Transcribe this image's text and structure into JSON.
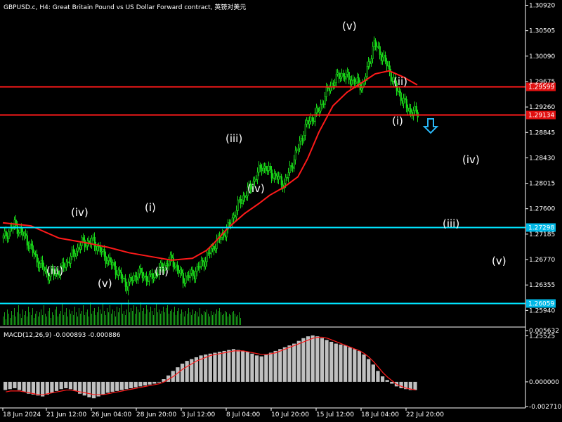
{
  "header": {
    "title": "GBPUSD.c, H4:  Great Britain Pound vs US Dollar Forward contract, 英镑对美元"
  },
  "chart_data": [
    {
      "type": "line",
      "subtype": "price-candlestick",
      "title": "GBPUSD.c, H4:  Great Britain Pound vs US Dollar Forward contract, 英镑对美元",
      "ylim": [
        1.2568,
        1.3096
      ],
      "grid": false,
      "y_ticks": [
        "1.30920",
        "1.30505",
        "1.30090",
        "1.29675",
        "1.29260",
        "1.28845",
        "1.28430",
        "1.28015",
        "1.27600",
        "1.27185",
        "1.26770",
        "1.26355",
        "1.25940",
        "1.25525"
      ],
      "x_ticks": [
        "18 Jun 2024",
        "21 Jun 12:00",
        "26 Jun 04:00",
        "28 Jun 20:00",
        "3 Jul 12:00",
        "8 Jul 04:00",
        "10 Jul 20:00",
        "15 Jul 12:00",
        "18 Jul 04:00",
        "22 Jul 20:00"
      ],
      "horizontal_levels": [
        {
          "label": "1.29599",
          "value": 1.29599,
          "color": "#ff1a1a",
          "label_bg": "#e01010"
        },
        {
          "label": "1.29134",
          "value": 1.29134,
          "color": "#ff1a1a",
          "label_bg": "#e01010"
        },
        {
          "label": "1.27298",
          "value": 1.27298,
          "color": "#00e5ff",
          "label_bg": "#00b8e6"
        },
        {
          "label": "1.26059",
          "value": 1.26059,
          "color": "#00e5ff",
          "label_bg": "#00b8e6"
        }
      ],
      "moving_average": {
        "color": "#ff1a1a",
        "x": [
          0,
          20,
          40,
          60,
          75,
          90,
          105,
          120,
          135,
          145,
          150,
          160,
          172,
          182,
          190,
          200,
          210,
          217
        ],
        "values": [
          1.2737,
          1.2732,
          1.2712,
          1.2704,
          1.2697,
          1.2688,
          1.2682,
          1.2676,
          1.2679,
          1.2692,
          1.2703,
          1.2728,
          1.2752,
          1.2768,
          1.2782,
          1.2795,
          1.2812,
          1.2842
        ]
      },
      "ma_upper": {
        "x": [
          217,
          225,
          235,
          245,
          255,
          265,
          275,
          285,
          295
        ],
        "values": [
          1.2842,
          1.2885,
          1.2928,
          1.295,
          1.2965,
          1.298,
          1.2985,
          1.2975,
          1.2962
        ]
      },
      "price_path": {
        "x": [
          0,
          8,
          16,
          24,
          32,
          40,
          48,
          56,
          64,
          72,
          80,
          88,
          96,
          104,
          112,
          120,
          128,
          136,
          144,
          152,
          160,
          168,
          176,
          184,
          192,
          200,
          208,
          216,
          224,
          232,
          240,
          248,
          256,
          264,
          272,
          280,
          288,
          296
        ],
        "values": [
          1.2712,
          1.2734,
          1.2712,
          1.2676,
          1.2652,
          1.2658,
          1.268,
          1.2704,
          1.2706,
          1.2683,
          1.2661,
          1.2635,
          1.2655,
          1.2645,
          1.2662,
          1.2677,
          1.2645,
          1.2655,
          1.2678,
          1.2706,
          1.2728,
          1.277,
          1.2795,
          1.283,
          1.2816,
          1.28,
          1.2848,
          1.2898,
          1.2918,
          1.2958,
          1.298,
          1.297,
          1.296,
          1.303,
          1.3,
          1.2955,
          1.2922,
          1.2914
        ]
      },
      "volume_bars": [
        6,
        9,
        4,
        11,
        8,
        5,
        10,
        7,
        12,
        6,
        9,
        14,
        8,
        5,
        11,
        7,
        10,
        6,
        13,
        9,
        7,
        12,
        5,
        8,
        10,
        6,
        9,
        11,
        7,
        14,
        8,
        6,
        10,
        12,
        5,
        9,
        7,
        11,
        13,
        6,
        8,
        10,
        15,
        7,
        9,
        12,
        6,
        11,
        8,
        10,
        7,
        13,
        9,
        6,
        12,
        8,
        10,
        14,
        7,
        9,
        11,
        6,
        16,
        8,
        10,
        12,
        7,
        9,
        13,
        11,
        8,
        15,
        10,
        7,
        12,
        9,
        14,
        8,
        11,
        10,
        6,
        13,
        9,
        12,
        15,
        8,
        10,
        7,
        11,
        18,
        9,
        12,
        10,
        14,
        8,
        13,
        11,
        9,
        16,
        10,
        12,
        8,
        14,
        11,
        9,
        13,
        10,
        7,
        12,
        15,
        9,
        11,
        8,
        10,
        13,
        9,
        12,
        14,
        8,
        10,
        11,
        9,
        13,
        7,
        10,
        12,
        8,
        11,
        9,
        6,
        10,
        8,
        12,
        9,
        7,
        11,
        8,
        10,
        9,
        6,
        12,
        8,
        7,
        10,
        9,
        11,
        8,
        6,
        10,
        7,
        9,
        8,
        11,
        10,
        12,
        9,
        7,
        8,
        10,
        9,
        6,
        8,
        7,
        9,
        10,
        8,
        6,
        7,
        9,
        5
      ],
      "wave_labels": [
        {
          "text": "(v)",
          "series": "main"
        },
        {
          "text": "(iv)",
          "series": "main"
        },
        {
          "text": "(iii)",
          "series": "main"
        },
        {
          "text": "(iv)",
          "series": "main"
        },
        {
          "text": "(iii)",
          "series": "main"
        },
        {
          "text": "(v)",
          "series": "main"
        },
        {
          "text": "(i)",
          "series": "main"
        },
        {
          "text": "(ii)",
          "series": "main"
        },
        {
          "text": "(ii)",
          "series": "main"
        },
        {
          "text": "(i)",
          "series": "main"
        },
        {
          "text": "(iv)",
          "series": "projection"
        },
        {
          "text": "(iii)",
          "series": "projection"
        },
        {
          "text": "(v)",
          "series": "projection"
        }
      ],
      "down_arrow_color": "#29b6f6"
    },
    {
      "type": "bar",
      "title": "MACD(12,26,9) -0.000893 -0.000886",
      "y_ticks": [
        "0.005632",
        "0.000000",
        "-0.002710"
      ],
      "ylim": [
        -0.00271,
        0.005632
      ],
      "histogram": [
        -0.0009,
        -0.0008,
        -0.0007,
        -0.0009,
        -0.0011,
        -0.0013,
        -0.0014,
        -0.0015,
        -0.0016,
        -0.0014,
        -0.0012,
        -0.001,
        -0.0008,
        -0.0007,
        -0.0008,
        -0.001,
        -0.0013,
        -0.0015,
        -0.0017,
        -0.0018,
        -0.0016,
        -0.0014,
        -0.0012,
        -0.0011,
        -0.001,
        -0.0009,
        -0.0008,
        -0.0007,
        -0.0006,
        -0.0005,
        -0.0004,
        -0.0003,
        -0.0002,
        0.0,
        0.0003,
        0.0007,
        0.0012,
        0.0016,
        0.002,
        0.0023,
        0.0025,
        0.0027,
        0.0029,
        0.003,
        0.0031,
        0.0032,
        0.0033,
        0.0034,
        0.0035,
        0.0036,
        0.0035,
        0.0034,
        0.0033,
        0.0031,
        0.0029,
        0.0028,
        0.003,
        0.0032,
        0.0034,
        0.0036,
        0.0038,
        0.004,
        0.0042,
        0.0045,
        0.0048,
        0.005,
        0.0051,
        0.005,
        0.0048,
        0.0046,
        0.0044,
        0.0042,
        0.0041,
        0.004,
        0.0038,
        0.0036,
        0.0034,
        0.003,
        0.0025,
        0.0019,
        0.0012,
        0.0006,
        0.0002,
        -0.0002,
        -0.0005,
        -0.0007,
        -0.0008,
        -0.0009,
        -0.0009
      ],
      "signal_color": "#ff1a1a",
      "signal": [
        -0.0011,
        -0.001,
        -0.001,
        -0.001,
        -0.0011,
        -0.0012,
        -0.0013,
        -0.0014,
        -0.0014,
        -0.0013,
        -0.0012,
        -0.0011,
        -0.001,
        -0.0009,
        -0.0009,
        -0.001,
        -0.0011,
        -0.0012,
        -0.0013,
        -0.0014,
        -0.0014,
        -0.0014,
        -0.0013,
        -0.0012,
        -0.0011,
        -0.001,
        -0.0009,
        -0.0008,
        -0.0007,
        -0.0006,
        -0.0005,
        -0.0004,
        -0.0003,
        -0.0002,
        0.0,
        0.0003,
        0.0006,
        0.001,
        0.0014,
        0.0017,
        0.002,
        0.0023,
        0.0025,
        0.0027,
        0.0029,
        0.003,
        0.0031,
        0.0032,
        0.0033,
        0.0034,
        0.0034,
        0.0034,
        0.0033,
        0.0032,
        0.0031,
        0.003,
        0.003,
        0.0031,
        0.0032,
        0.0034,
        0.0036,
        0.0038,
        0.004,
        0.0042,
        0.0044,
        0.0046,
        0.0048,
        0.0049,
        0.0049,
        0.0048,
        0.0046,
        0.0044,
        0.0042,
        0.004,
        0.0038,
        0.0036,
        0.0034,
        0.0031,
        0.0027,
        0.0022,
        0.0016,
        0.001,
        0.0005,
        0.0001,
        -0.0003,
        -0.0005,
        -0.0007,
        -0.0008,
        -0.0009
      ]
    }
  ]
}
